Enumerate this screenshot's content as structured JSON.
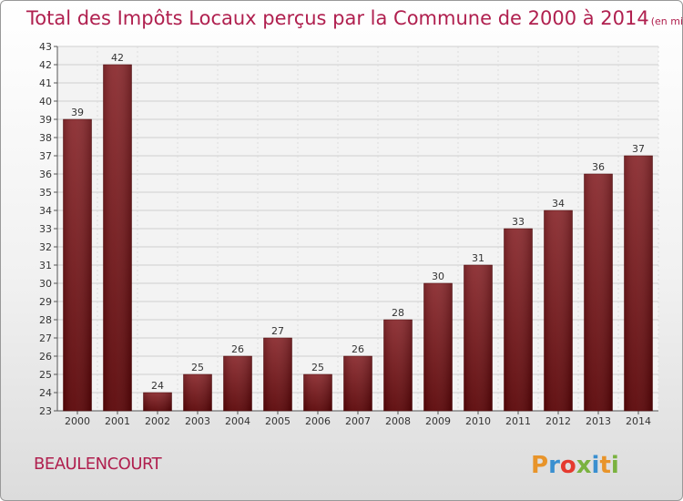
{
  "chart_data": {
    "type": "bar",
    "title": "Total des Impôts Locaux perçus par la Commune de 2000 à 2014",
    "subtitle": "(en milliers d'€)",
    "categories": [
      "2000",
      "2001",
      "2002",
      "2003",
      "2004",
      "2005",
      "2006",
      "2007",
      "2008",
      "2009",
      "2010",
      "2011",
      "2012",
      "2013",
      "2014"
    ],
    "values": [
      39,
      42,
      24,
      25,
      26,
      27,
      25,
      26,
      28,
      30,
      31,
      33,
      34,
      36,
      37
    ],
    "ylim": [
      23,
      43
    ],
    "yticks": [
      23,
      24,
      25,
      26,
      27,
      28,
      29,
      30,
      31,
      32,
      33,
      34,
      35,
      36,
      37,
      38,
      39,
      40,
      41,
      42,
      43
    ],
    "xlabel": "",
    "ylabel": "",
    "grid": true,
    "bar_color": "#7a1518"
  },
  "footer": {
    "commune": "BEAULENCOURT",
    "logo_text": "Proxiti",
    "logo_colors": [
      "#e8942a",
      "#3a8fd0",
      "#e53a2f",
      "#7ab23f",
      "#3a8fd0",
      "#e8942a",
      "#7ab23f"
    ]
  }
}
